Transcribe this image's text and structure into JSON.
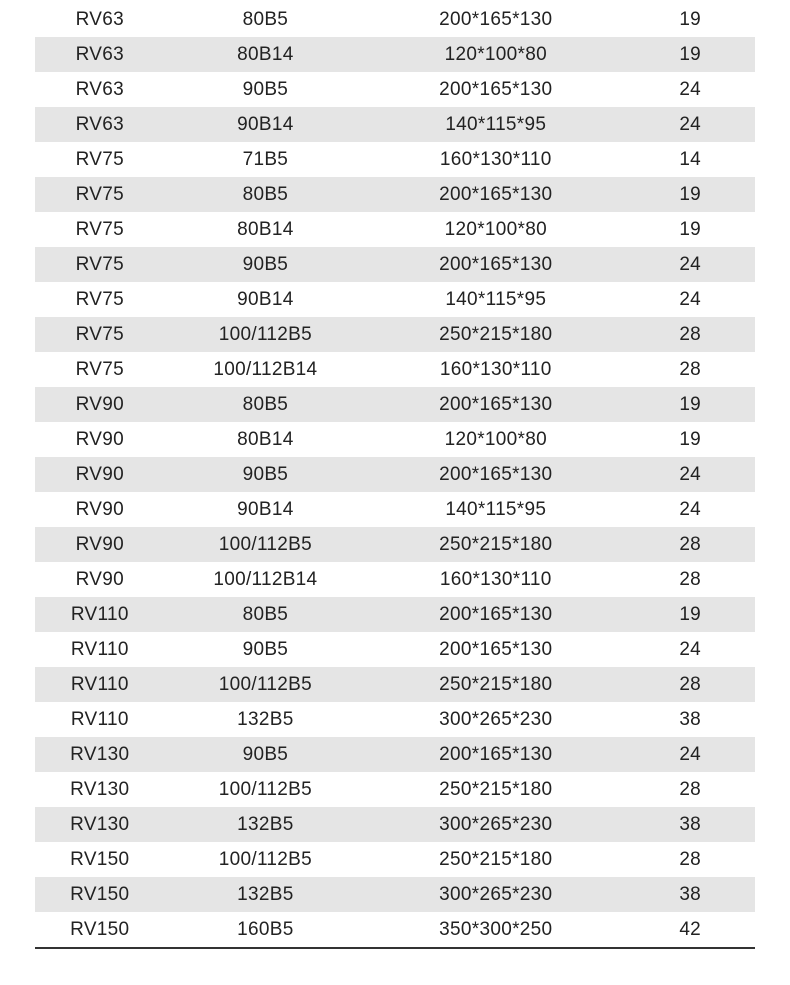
{
  "table": {
    "row_colors": {
      "odd": "#ffffff",
      "even": "#e5e5e5"
    },
    "text_color": "#222222",
    "font_size": 19,
    "border_color": "#333333",
    "rows": [
      {
        "c1": "RV63",
        "c2": "80B5",
        "c3": "200*165*130",
        "c4": "19",
        "bg": "odd"
      },
      {
        "c1": "RV63",
        "c2": "80B14",
        "c3": "120*100*80",
        "c4": "19",
        "bg": "even"
      },
      {
        "c1": "RV63",
        "c2": "90B5",
        "c3": "200*165*130",
        "c4": "24",
        "bg": "odd"
      },
      {
        "c1": "RV63",
        "c2": "90B14",
        "c3": "140*115*95",
        "c4": "24",
        "bg": "even"
      },
      {
        "c1": "RV75",
        "c2": "71B5",
        "c3": "160*130*110",
        "c4": "14",
        "bg": "odd"
      },
      {
        "c1": "RV75",
        "c2": "80B5",
        "c3": "200*165*130",
        "c4": "19",
        "bg": "even"
      },
      {
        "c1": "RV75",
        "c2": "80B14",
        "c3": "120*100*80",
        "c4": "19",
        "bg": "odd"
      },
      {
        "c1": "RV75",
        "c2": "90B5",
        "c3": "200*165*130",
        "c4": "24",
        "bg": "even"
      },
      {
        "c1": "RV75",
        "c2": "90B14",
        "c3": "140*115*95",
        "c4": "24",
        "bg": "odd"
      },
      {
        "c1": "RV75",
        "c2": "100/112B5",
        "c3": "250*215*180",
        "c4": "28",
        "bg": "even"
      },
      {
        "c1": "RV75",
        "c2": "100/112B14",
        "c3": "160*130*110",
        "c4": "28",
        "bg": "odd"
      },
      {
        "c1": "RV90",
        "c2": "80B5",
        "c3": "200*165*130",
        "c4": "19",
        "bg": "even"
      },
      {
        "c1": "RV90",
        "c2": "80B14",
        "c3": "120*100*80",
        "c4": "19",
        "bg": "odd"
      },
      {
        "c1": "RV90",
        "c2": "90B5",
        "c3": "200*165*130",
        "c4": "24",
        "bg": "even"
      },
      {
        "c1": "RV90",
        "c2": "90B14",
        "c3": "140*115*95",
        "c4": "24",
        "bg": "odd"
      },
      {
        "c1": "RV90",
        "c2": "100/112B5",
        "c3": "250*215*180",
        "c4": "28",
        "bg": "even"
      },
      {
        "c1": "RV90",
        "c2": "100/112B14",
        "c3": "160*130*110",
        "c4": "28",
        "bg": "odd"
      },
      {
        "c1": "RV110",
        "c2": "80B5",
        "c3": "200*165*130",
        "c4": "19",
        "bg": "even"
      },
      {
        "c1": "RV110",
        "c2": "90B5",
        "c3": "200*165*130",
        "c4": "24",
        "bg": "odd"
      },
      {
        "c1": "RV110",
        "c2": "100/112B5",
        "c3": "250*215*180",
        "c4": "28",
        "bg": "even"
      },
      {
        "c1": "RV110",
        "c2": "132B5",
        "c3": "300*265*230",
        "c4": "38",
        "bg": "odd"
      },
      {
        "c1": "RV130",
        "c2": "90B5",
        "c3": "200*165*130",
        "c4": "24",
        "bg": "even"
      },
      {
        "c1": "RV130",
        "c2": "100/112B5",
        "c3": "250*215*180",
        "c4": "28",
        "bg": "odd"
      },
      {
        "c1": "RV130",
        "c2": "132B5",
        "c3": "300*265*230",
        "c4": "38",
        "bg": "even"
      },
      {
        "c1": "RV150",
        "c2": "100/112B5",
        "c3": "250*215*180",
        "c4": "28",
        "bg": "odd"
      },
      {
        "c1": "RV150",
        "c2": "132B5",
        "c3": "300*265*230",
        "c4": "38",
        "bg": "even"
      },
      {
        "c1": "RV150",
        "c2": "160B5",
        "c3": "350*300*250",
        "c4": "42",
        "bg": "odd"
      }
    ]
  }
}
